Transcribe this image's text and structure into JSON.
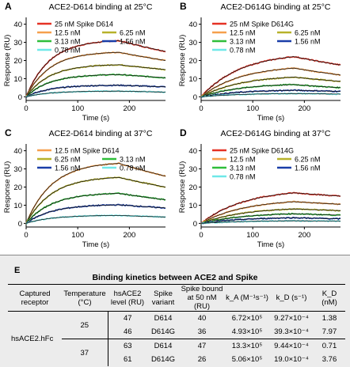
{
  "chart_data": [
    {
      "panel": "A",
      "type": "line",
      "title": "ACE2-D614 binding at 25°C",
      "xlabel": "Time (s)",
      "ylabel": "Response (RU)",
      "xlim": [
        0,
        270
      ],
      "ylim": [
        -2,
        42
      ],
      "xticks": [
        0,
        100,
        200
      ],
      "yticks": [
        0,
        10,
        20,
        30,
        40
      ],
      "legend": [
        "25 nM Spike D614",
        "12.5 nM",
        "6.25 nM",
        "3.13 nM",
        "1.56 nM",
        "0.78 nM"
      ],
      "series": [
        {
          "name": "25 nM Spike D614",
          "color": "#e53225",
          "plateau": 31.5,
          "end": 25,
          "k": 0.022
        },
        {
          "name": "12.5 nM",
          "color": "#f6a04d",
          "plateau": 25,
          "end": 20,
          "k": 0.022
        },
        {
          "name": "6.25 nM",
          "color": "#b7b22a",
          "plateau": 18,
          "end": 15,
          "k": 0.022
        },
        {
          "name": "3.13 nM",
          "color": "#2fbe3a",
          "plateau": 12.5,
          "end": 10.5,
          "k": 0.022
        },
        {
          "name": "1.56 nM",
          "color": "#1a3ea8",
          "plateau": 6.5,
          "end": 5.5,
          "k": 0.022
        },
        {
          "name": "0.78 nM",
          "color": "#6fe8e8",
          "plateau": 3.2,
          "end": 2.6,
          "k": 0.022
        }
      ]
    },
    {
      "panel": "B",
      "type": "line",
      "title": "ACE2-D614G binding at 25°C",
      "xlabel": "Time (s)",
      "ylabel": "Response (RU)",
      "xlim": [
        0,
        270
      ],
      "ylim": [
        -2,
        42
      ],
      "xticks": [
        0,
        100,
        200
      ],
      "yticks": [
        0,
        10,
        20,
        30,
        40
      ],
      "legend": [
        "25 nM Spike D614G",
        "12.5 nM",
        "6.25 nM",
        "3.13 nM",
        "1.56 nM",
        "0.78 nM"
      ],
      "series": [
        {
          "name": "25 nM Spike D614G",
          "color": "#e53225",
          "plateau": 24.5,
          "end": 17.5,
          "k": 0.013
        },
        {
          "name": "12.5 nM",
          "color": "#f6a04d",
          "plateau": 17.5,
          "end": 12,
          "k": 0.013
        },
        {
          "name": "6.25 nM",
          "color": "#b7b22a",
          "plateau": 12,
          "end": 8.5,
          "k": 0.013
        },
        {
          "name": "3.13 nM",
          "color": "#2fbe3a",
          "plateau": 7.5,
          "end": 5,
          "k": 0.013
        },
        {
          "name": "1.56 nM",
          "color": "#1a3ea8",
          "plateau": 4,
          "end": 3,
          "k": 0.013
        },
        {
          "name": "0.78 nM",
          "color": "#6fe8e8",
          "plateau": 2,
          "end": 1.5,
          "k": 0.013
        }
      ]
    },
    {
      "panel": "C",
      "type": "line",
      "title": "ACE2-D614 binding at 37°C",
      "xlabel": "Time (s)",
      "ylabel": "Response (RU)",
      "xlim": [
        0,
        270
      ],
      "ylim": [
        -2,
        42
      ],
      "xticks": [
        0,
        100,
        200
      ],
      "yticks": [
        0,
        10,
        20,
        30,
        40
      ],
      "legend": [
        "12.5 nM Spike D614",
        "6.25 nM",
        "3.13 nM",
        "1.56 nM",
        "0.78 nM"
      ],
      "series": [
        {
          "name": "12.5 nM Spike D614",
          "color": "#f6a04d",
          "plateau": 34,
          "end": 26,
          "k": 0.02
        },
        {
          "name": "6.25 nM",
          "color": "#b7b22a",
          "plateau": 26,
          "end": 20,
          "k": 0.02
        },
        {
          "name": "3.13 nM",
          "color": "#2fbe3a",
          "plateau": 17,
          "end": 13,
          "k": 0.02
        },
        {
          "name": "1.56 nM",
          "color": "#1a3ea8",
          "plateau": 10.5,
          "end": 8.5,
          "k": 0.02
        },
        {
          "name": "0.78 nM",
          "color": "#6fe8e8",
          "plateau": 4.5,
          "end": 3.5,
          "k": 0.02
        }
      ]
    },
    {
      "panel": "D",
      "type": "line",
      "title": "ACE2-D614G binding at 37°C",
      "xlabel": "Time (s)",
      "ylabel": "Response (RU)",
      "xlim": [
        0,
        270
      ],
      "ylim": [
        -2,
        42
      ],
      "xticks": [
        0,
        100,
        200
      ],
      "yticks": [
        0,
        10,
        20,
        30,
        40
      ],
      "legend": [
        "25 nM Spike D614G",
        "12.5 nM",
        "6.25 nM",
        "3.13 nM",
        "1.56 nM",
        "0.78 nM"
      ],
      "series": [
        {
          "name": "25 nM Spike D614G",
          "color": "#e53225",
          "plateau": 19,
          "end": 15,
          "k": 0.012
        },
        {
          "name": "12.5 nM",
          "color": "#f6a04d",
          "plateau": 13.5,
          "end": 10.5,
          "k": 0.012
        },
        {
          "name": "6.25 nM",
          "color": "#b7b22a",
          "plateau": 9,
          "end": 7,
          "k": 0.012
        },
        {
          "name": "3.13 nM",
          "color": "#2fbe3a",
          "plateau": 6,
          "end": 4.5,
          "k": 0.012
        },
        {
          "name": "1.56 nM",
          "color": "#1a3ea8",
          "plateau": 3.5,
          "end": 2.5,
          "k": 0.012
        },
        {
          "name": "0.78 nM",
          "color": "#6fe8e8",
          "plateau": 1.6,
          "end": 1.2,
          "k": 0.012
        }
      ]
    }
  ],
  "table": {
    "letter": "E",
    "title": "Binding kinetics between ACE2 and Spike",
    "headers": {
      "captured_receptor": "Captured receptor",
      "temperature": "Temperature (°C)",
      "hsace2_level": "hsACE2 level (RU)",
      "spike_variant": "Spike variant",
      "spike_bound": "Spike bound at 50 nM (RU)",
      "ka": "k_A (M⁻¹s⁻¹)",
      "kd": "k_D (s⁻¹)",
      "KD": "K_D (nM)"
    },
    "receptor": "hsACE2.hFc",
    "rows": [
      {
        "temp": "25",
        "level": "47",
        "variant": "D614",
        "bound": "40",
        "ka": "6.72×10⁵",
        "kd": "9.27×10⁻⁴",
        "KD": "1.38"
      },
      {
        "temp": "",
        "level": "46",
        "variant": "D614G",
        "bound": "36",
        "ka": "4.93×10⁵",
        "kd": "39.3×10⁻⁴",
        "KD": "7.97"
      },
      {
        "temp": "37",
        "level": "63",
        "variant": "D614",
        "bound": "47",
        "ka": "13.3×10⁵",
        "kd": "9.44×10⁻⁴",
        "KD": "0.71"
      },
      {
        "temp": "",
        "level": "61",
        "variant": "D614G",
        "bound": "26",
        "ka": "5.06×10⁵",
        "kd": "19.0×10⁻⁴",
        "KD": "3.76"
      }
    ]
  }
}
